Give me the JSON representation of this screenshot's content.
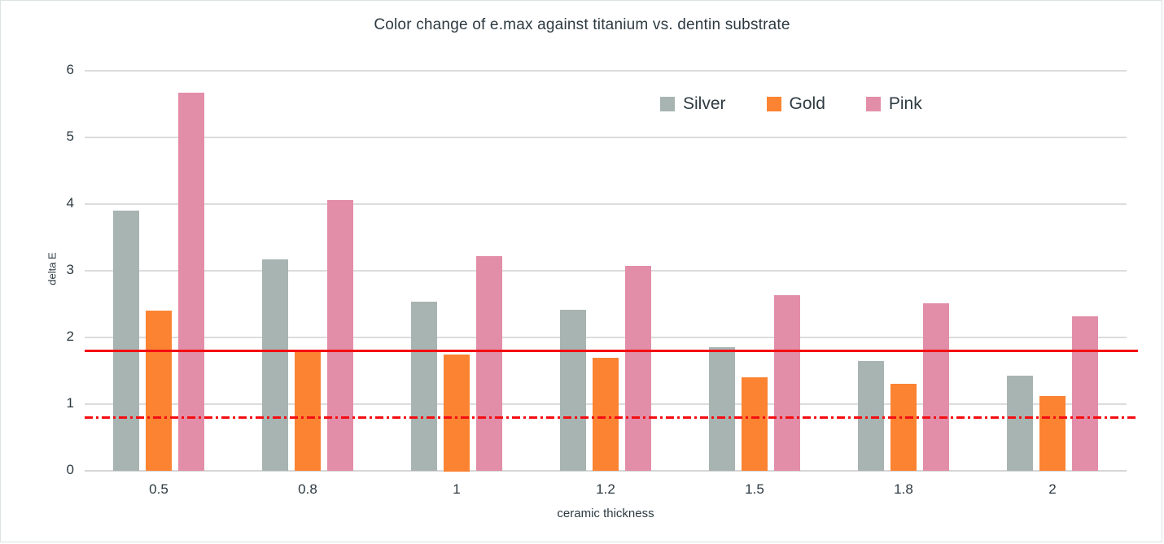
{
  "chart_data": {
    "type": "bar",
    "title": "Color change of e.max against titanium vs. dentin substrate",
    "xlabel": "ceramic thickness",
    "ylabel": "delta E",
    "categories": [
      "0.5",
      "0.8",
      "1",
      "1.2",
      "1.5",
      "1.8",
      "2"
    ],
    "series": [
      {
        "name": "Silver",
        "color": "#a8b4b1",
        "values": [
          3.9,
          3.17,
          2.54,
          2.42,
          1.85,
          1.65,
          1.43
        ]
      },
      {
        "name": "Gold",
        "color": "#fb8332",
        "values": [
          2.4,
          1.82,
          1.75,
          1.69,
          1.4,
          1.3,
          1.12
        ]
      },
      {
        "name": "Pink",
        "color": "#e28ea9",
        "values": [
          5.67,
          4.06,
          3.22,
          3.07,
          2.63,
          2.51,
          2.32
        ]
      }
    ],
    "reference_lines": [
      {
        "value": 1.8,
        "style": "solid",
        "color": "#f40d12"
      },
      {
        "value": 0.8,
        "style": "dash-dot",
        "color": "#f40d12"
      }
    ],
    "ylim": [
      0,
      6
    ],
    "yticks": [
      0,
      1,
      2,
      3,
      4,
      5,
      6
    ],
    "grid": true,
    "grid_color": "#dcdcdc",
    "text_color": "#2d3a41",
    "legend_position": "top-right-inside"
  }
}
